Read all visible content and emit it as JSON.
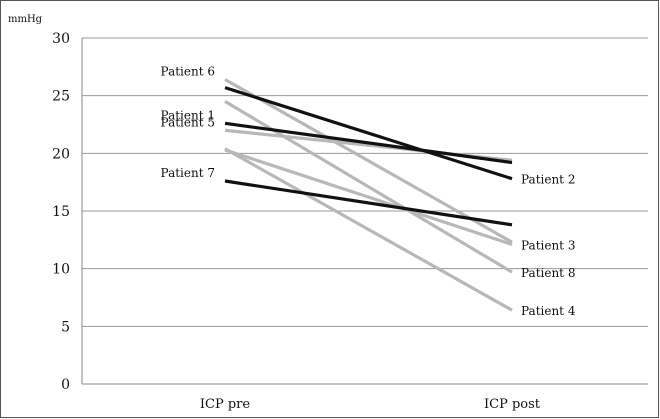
{
  "chart_data": {
    "type": "line",
    "ylabel": "mmHg",
    "categories": [
      "ICP pre",
      "ICP post"
    ],
    "ylim": [
      0,
      30
    ],
    "yticks": [
      "0",
      "5",
      "10",
      "15",
      "20",
      "25",
      "30"
    ],
    "grid": true,
    "series": [
      {
        "name": "Patient 1",
        "values": [
          22.6,
          19.2
        ],
        "color": "#111111",
        "label_at": "pre"
      },
      {
        "name": "Patient 2",
        "values": [
          25.7,
          17.8
        ],
        "color": "#111111",
        "label_at": "post"
      },
      {
        "name": "Patient 3",
        "values": [
          20.3,
          12.1
        ],
        "color": "#b8b8b8",
        "label_at": "post"
      },
      {
        "name": "Patient 4",
        "values": [
          20.4,
          6.4
        ],
        "color": "#b8b8b8",
        "label_at": "post"
      },
      {
        "name": "Patient 5",
        "values": [
          22.0,
          19.4
        ],
        "color": "#b8b8b8",
        "label_at": "pre"
      },
      {
        "name": "Patient 6",
        "values": [
          26.4,
          12.3
        ],
        "color": "#b8b8b8",
        "label_at": "pre"
      },
      {
        "name": "Patient 7",
        "values": [
          17.6,
          13.8
        ],
        "color": "#111111",
        "label_at": "pre"
      },
      {
        "name": "Patient 8",
        "values": [
          24.5,
          9.7
        ],
        "color": "#b8b8b8",
        "label_at": "post"
      }
    ]
  }
}
